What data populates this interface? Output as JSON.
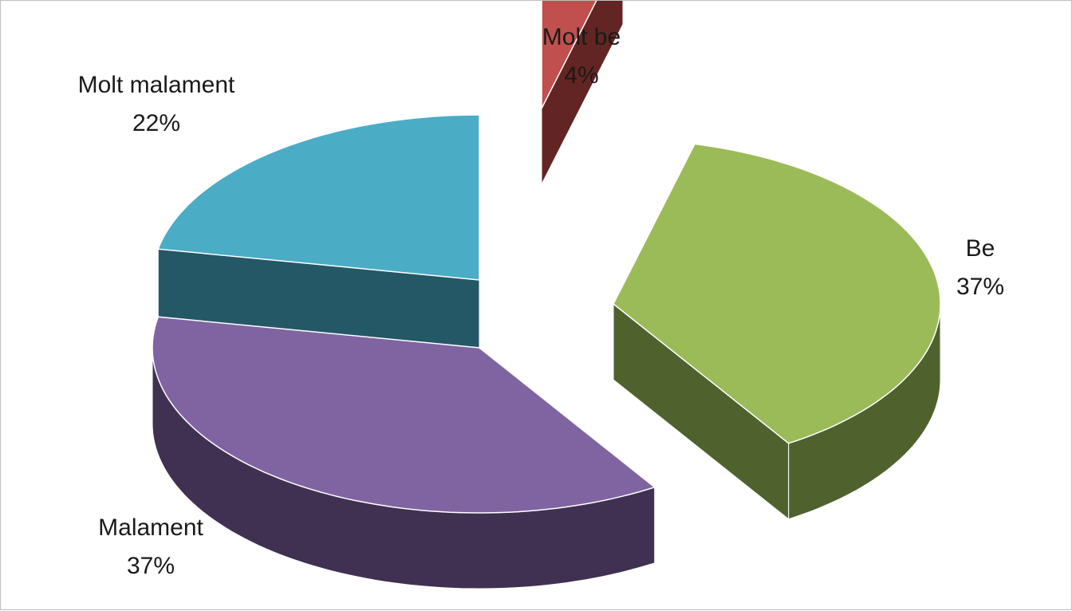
{
  "chart_data": {
    "type": "pie",
    "style": "3d-exploded",
    "title": "",
    "legend": "none",
    "series": [
      {
        "slices": [
          {
            "label": "Molt be",
            "value": 4,
            "display": "4%",
            "color": "#c0504d",
            "side_color": "#632523"
          },
          {
            "label": "Be",
            "value": 37,
            "display": "37%",
            "color": "#9bbb59",
            "side_color": "#4f612d"
          },
          {
            "label": "Malament",
            "value": 37,
            "display": "37%",
            "color": "#8064a2",
            "side_color": "#403152"
          },
          {
            "label": "Molt malament",
            "value": 22,
            "display": "22%",
            "color": "#4bacc6",
            "side_color": "#245866"
          }
        ]
      }
    ]
  }
}
